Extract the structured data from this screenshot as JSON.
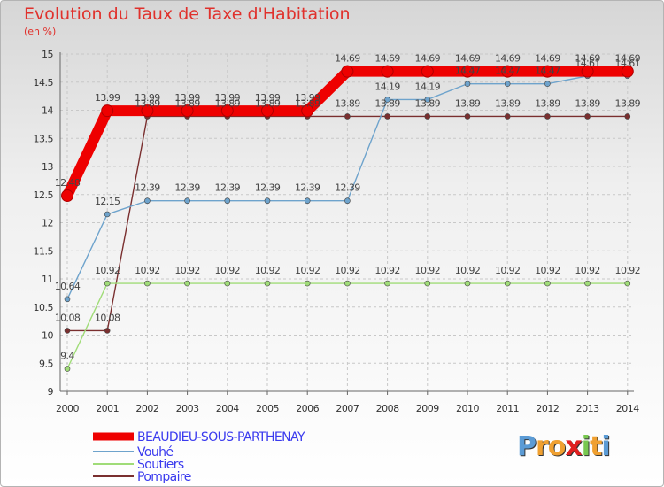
{
  "chart_data": {
    "type": "line",
    "title": "Evolution du Taux de Taxe d'Habitation",
    "unit_label": "(en %)",
    "xlabel": "",
    "ylabel": "(en %)",
    "ylim": [
      9,
      15
    ],
    "yticks": [
      "9",
      "9.5",
      "10",
      "10.5",
      "11",
      "11.5",
      "12",
      "12.5",
      "13",
      "13.5",
      "14",
      "14.5",
      "15"
    ],
    "categories": [
      "2000",
      "2001",
      "2002",
      "2003",
      "2004",
      "2005",
      "2006",
      "2007",
      "2008",
      "2009",
      "2010",
      "2011",
      "2012",
      "2013",
      "2014"
    ],
    "grid": true,
    "legend_position": "bottom-left",
    "series": [
      {
        "name": "BEAUDIEU-SOUS-PARTHENAY",
        "color": "#ee0000",
        "values": [
          12.48,
          13.99,
          13.99,
          13.99,
          13.99,
          13.99,
          13.99,
          14.69,
          14.69,
          14.69,
          14.69,
          14.69,
          14.69,
          14.69,
          14.69
        ],
        "labels": [
          "12.48",
          "13.99",
          "13.99",
          "13.99",
          "13.99",
          "13.99",
          "13.99",
          "14.69",
          "14.69",
          "14.69",
          "14.69",
          "14.69",
          "14.69",
          "14.69",
          "14.69"
        ]
      },
      {
        "name": "Vouhé",
        "color": "#6ea3cc",
        "values": [
          10.64,
          12.15,
          12.39,
          12.39,
          12.39,
          12.39,
          12.39,
          12.39,
          14.19,
          14.19,
          14.47,
          14.47,
          14.47,
          14.61,
          14.61
        ],
        "labels": [
          "10.64",
          "12.15",
          "12.39",
          "12.39",
          "12.39",
          "12.39",
          "12.39",
          "12.39",
          "14.19",
          "14.19",
          "14.47",
          "14.47",
          "14.47",
          "14.61",
          "14.61"
        ]
      },
      {
        "name": "Soutiers",
        "color": "#a0dc78",
        "values": [
          9.4,
          10.92,
          10.92,
          10.92,
          10.92,
          10.92,
          10.92,
          10.92,
          10.92,
          10.92,
          10.92,
          10.92,
          10.92,
          10.92,
          10.92
        ],
        "labels": [
          "9.4",
          "10.92",
          "10.92",
          "10.92",
          "10.92",
          "10.92",
          "10.92",
          "10.92",
          "10.92",
          "10.92",
          "10.92",
          "10.92",
          "10.92",
          "10.92",
          "10.92"
        ]
      },
      {
        "name": "Pompaire",
        "color": "#7a2f2f",
        "values": [
          10.08,
          10.08,
          13.89,
          13.89,
          13.89,
          13.89,
          13.89,
          13.89,
          13.89,
          13.89,
          13.89,
          13.89,
          13.89,
          13.89,
          13.89
        ],
        "labels": [
          "10.08",
          "10.08",
          "13.89",
          "13.89",
          "13.89",
          "13.89",
          "13.89",
          "13.89",
          "13.89",
          "13.89",
          "13.89",
          "13.89",
          "13.89",
          "13.89",
          "13.89"
        ]
      }
    ]
  },
  "logo": {
    "letters": [
      "P",
      "r",
      "o",
      "x",
      "i",
      "t",
      "i"
    ],
    "colors": [
      "#5b9bd5",
      "#f0a030",
      "#f0a030",
      "#e02020",
      "#78c850",
      "#f0a030",
      "#5b9bd5"
    ]
  }
}
